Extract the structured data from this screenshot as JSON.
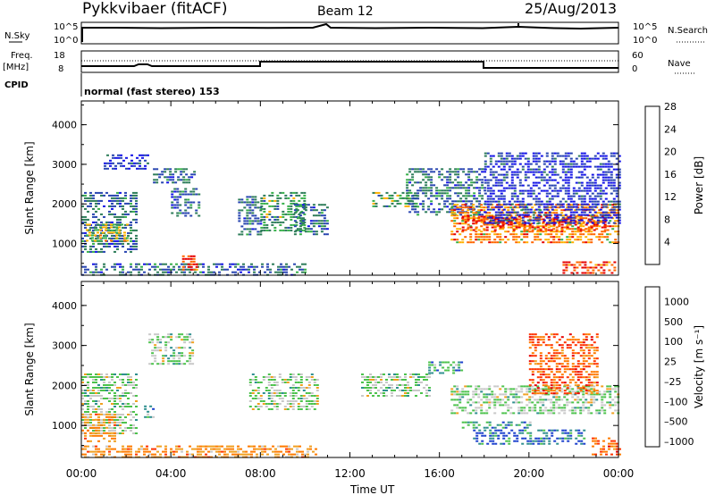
{
  "header": {
    "station": "Pykkvibaer (fitACF)",
    "beam": "Beam 12",
    "date": "25/Aug/2013"
  },
  "status_panels": {
    "nsky": {
      "label": "N.Sky",
      "ticks": [
        "10^5",
        "10^0"
      ]
    },
    "nsearch": {
      "label": "N.Search",
      "ticks": [
        "10^5",
        "10^0"
      ]
    },
    "freq": {
      "label_line1": "Freq.",
      "label_line2": "[MHz]",
      "ticks": [
        "18",
        "8"
      ]
    },
    "nave": {
      "label": "Nave",
      "ticks": [
        "60",
        "0"
      ]
    },
    "cpid": {
      "label": "CPID",
      "text": "normal (fast stereo) 153"
    }
  },
  "chart_data": [
    {
      "type": "heatmap",
      "name": "power",
      "ylabel": "Slant Range [km]",
      "xlabel": "Time UT",
      "xlim": [
        0,
        24
      ],
      "ylim": [
        200,
        4600
      ],
      "x_ticks": [
        "00:00",
        "04:00",
        "08:00",
        "12:00",
        "16:00",
        "20:00",
        "00:00"
      ],
      "y_ticks": [
        "1000",
        "2000",
        "3000",
        "4000"
      ],
      "colorbar": {
        "label": "Power [dB]",
        "ticks": [
          "4",
          "8",
          "12",
          "16",
          "20",
          "24",
          "28"
        ],
        "colors": [
          "#1414e6",
          "#2845b0",
          "#2e7d5a",
          "#37b04a",
          "#ffb000",
          "#ff6600",
          "#e60000"
        ]
      },
      "regions": [
        {
          "x": [
            0.0,
            2.5
          ],
          "y": [
            800,
            2300
          ],
          "level": 2
        },
        {
          "x": [
            0.2,
            2.0
          ],
          "y": [
            1050,
            1500
          ],
          "level": 4
        },
        {
          "x": [
            1.0,
            3.0
          ],
          "y": [
            2900,
            3250
          ],
          "level": 1
        },
        {
          "x": [
            3.2,
            5.0
          ],
          "y": [
            2500,
            2900
          ],
          "level": 2
        },
        {
          "x": [
            4.0,
            5.2
          ],
          "y": [
            1700,
            2400
          ],
          "level": 2
        },
        {
          "x": [
            7.0,
            8.0
          ],
          "y": [
            1200,
            2200
          ],
          "level": 2
        },
        {
          "x": [
            8.0,
            10.0
          ],
          "y": [
            1300,
            2300
          ],
          "level": 3
        },
        {
          "x": [
            9.5,
            11.0
          ],
          "y": [
            1200,
            2000
          ],
          "level": 2
        },
        {
          "x": [
            13.0,
            15.0
          ],
          "y": [
            1900,
            2300
          ],
          "level": 3
        },
        {
          "x": [
            14.5,
            18.0
          ],
          "y": [
            1700,
            2900
          ],
          "level": 2
        },
        {
          "x": [
            16.5,
            24.0
          ],
          "y": [
            1000,
            2000
          ],
          "level": 5
        },
        {
          "x": [
            17.0,
            23.5
          ],
          "y": [
            1300,
            1700
          ],
          "level": 6
        },
        {
          "x": [
            18.0,
            24.0
          ],
          "y": [
            1500,
            3300
          ],
          "level": 1
        },
        {
          "x": [
            0.0,
            10.0
          ],
          "y": [
            200,
            500
          ],
          "level": 2
        },
        {
          "x": [
            4.5,
            5.2
          ],
          "y": [
            300,
            700
          ],
          "level": 6
        },
        {
          "x": [
            21.5,
            24.0
          ],
          "y": [
            250,
            550
          ],
          "level": 6
        }
      ]
    },
    {
      "type": "heatmap",
      "name": "velocity",
      "ylabel": "Slant Range [km]",
      "xlabel": "Time UT",
      "xlim": [
        0,
        24
      ],
      "ylim": [
        200,
        4600
      ],
      "x_ticks": [
        "00:00",
        "04:00",
        "08:00",
        "12:00",
        "16:00",
        "20:00",
        "00:00"
      ],
      "y_ticks": [
        "1000",
        "2000",
        "3000",
        "4000"
      ],
      "colorbar": {
        "label": "Velocity [m s⁻¹]",
        "ticks": [
          "1000",
          "500",
          "100",
          "25",
          "–25",
          "–100",
          "–500",
          "–1000"
        ],
        "colors": [
          "#1a3fcc",
          "#2f8f8f",
          "#4cc24c",
          "#c8c8c8",
          "#f0a020",
          "#ff7a00",
          "#ff3300",
          "#e60000"
        ]
      },
      "regions": [
        {
          "x": [
            0.0,
            2.5
          ],
          "y": [
            800,
            2300
          ],
          "level": 3
        },
        {
          "x": [
            0.0,
            1.5
          ],
          "y": [
            600,
            1300
          ],
          "level": 5
        },
        {
          "x": [
            2.8,
            3.2
          ],
          "y": [
            1150,
            1500
          ],
          "level": 2
        },
        {
          "x": [
            3.0,
            5.0
          ],
          "y": [
            2500,
            3300
          ],
          "level": 3
        },
        {
          "x": [
            0.0,
            10.5
          ],
          "y": [
            200,
            500
          ],
          "level": 5
        },
        {
          "x": [
            7.5,
            10.5
          ],
          "y": [
            1400,
            2300
          ],
          "level": 3
        },
        {
          "x": [
            12.5,
            15.5
          ],
          "y": [
            1700,
            2300
          ],
          "level": 3
        },
        {
          "x": [
            15.5,
            17.0
          ],
          "y": [
            2300,
            2600
          ],
          "level": 2
        },
        {
          "x": [
            16.5,
            24.0
          ],
          "y": [
            1300,
            2000
          ],
          "level": 3
        },
        {
          "x": [
            17.5,
            22.5
          ],
          "y": [
            500,
            900
          ],
          "level": 1
        },
        {
          "x": [
            17.0,
            20.0
          ],
          "y": [
            900,
            1100
          ],
          "level": 2
        },
        {
          "x": [
            20.0,
            23.0
          ],
          "y": [
            1800,
            3300
          ],
          "level": 6
        },
        {
          "x": [
            22.8,
            24.0
          ],
          "y": [
            250,
            700
          ],
          "level": 6
        }
      ]
    }
  ]
}
